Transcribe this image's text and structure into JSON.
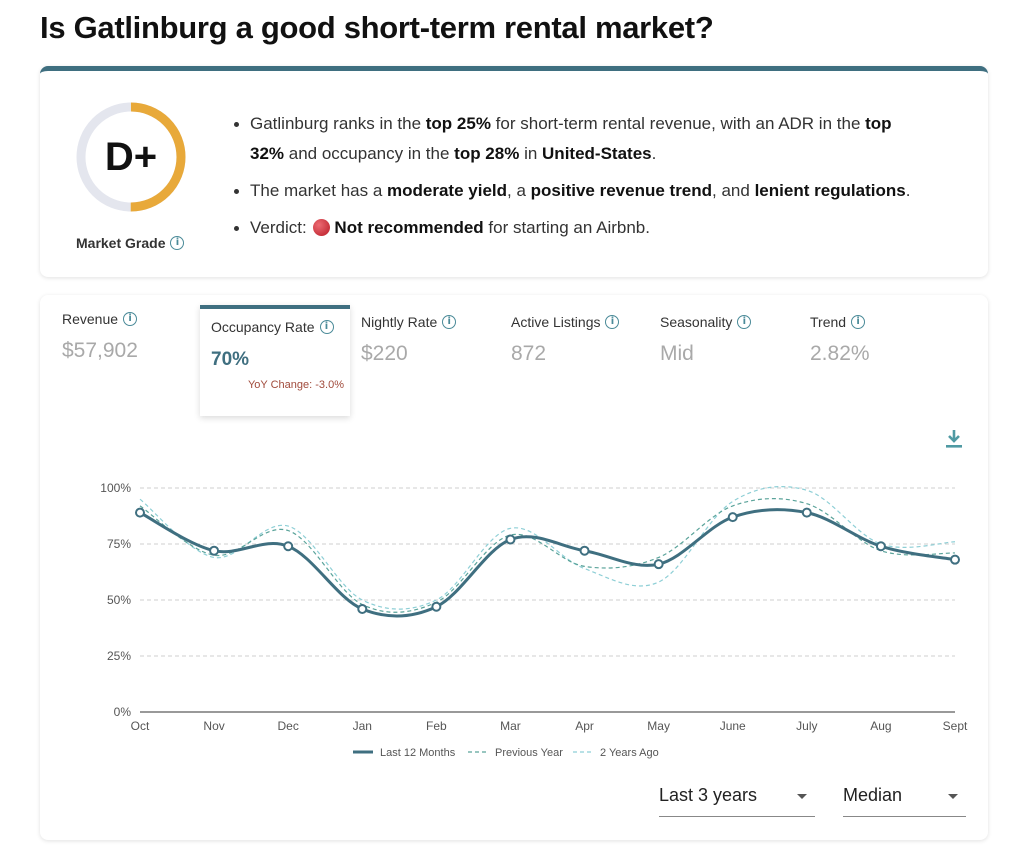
{
  "title": "Is Gatlinburg a good short-term rental market?",
  "grade": {
    "letter": "D+",
    "label": "Market Grade",
    "ring_color": "#e8a93a",
    "ring_track_color": "#e4e6ee",
    "ring_fraction": 0.5
  },
  "summary": {
    "b1_t1": "Gatlinburg ranks in the ",
    "b1_s1": "top 25%",
    "b1_t2": " for short-term rental revenue, with an ADR in the ",
    "b1_s2": "top 32%",
    "b1_t3": " and occupancy in the ",
    "b1_s3": "top 28%",
    "b1_t4": " in ",
    "b1_s4": "United-States",
    "b1_t5": ".",
    "b2_t1": "The market has a ",
    "b2_s1": "moderate yield",
    "b2_t2": ", a ",
    "b2_s2": "positive revenue trend",
    "b2_t3": ", and ",
    "b2_s3": "lenient regulations",
    "b2_t4": ".",
    "b3_t1": "Verdict: ",
    "b3_s1": "Not recommended",
    "b3_t2": " for starting an Airbnb."
  },
  "metrics": [
    {
      "label": "Revenue",
      "value": "$57,902"
    },
    {
      "label": "Occupancy Rate",
      "value": "70%",
      "yoy": "YoY Change: -3.0%"
    },
    {
      "label": "Nightly Rate",
      "value": "$220"
    },
    {
      "label": "Active Listings",
      "value": "872"
    },
    {
      "label": "Seasonality",
      "value": "Mid"
    },
    {
      "label": "Trend",
      "value": "2.82%"
    }
  ],
  "active_metric_index": 1,
  "colors": {
    "accent": "#3f6f80",
    "prev_year": "#5aa39a",
    "two_years": "#8ecfd6"
  },
  "chart_data": {
    "type": "line",
    "categories": [
      "Oct",
      "Nov",
      "Dec",
      "Jan",
      "Feb",
      "Mar",
      "Apr",
      "May",
      "June",
      "July",
      "Aug",
      "Sept"
    ],
    "y_ticks": [
      "0%",
      "25%",
      "50%",
      "75%",
      "100%"
    ],
    "ylim": [
      0,
      100
    ],
    "grid": true,
    "legend_position": "bottom",
    "series": [
      {
        "name": "Last 12 Months",
        "style": "solid",
        "values": [
          89,
          72,
          74,
          46,
          47,
          77,
          72,
          66,
          87,
          89,
          74,
          68
        ]
      },
      {
        "name": "Previous Year",
        "style": "dashed",
        "values": [
          92,
          70,
          81,
          48,
          49,
          79,
          65,
          69,
          92,
          93,
          72,
          71
        ]
      },
      {
        "name": "2 Years Ago",
        "style": "dashed",
        "values": [
          95,
          69,
          83,
          50,
          50,
          82,
          64,
          58,
          94,
          99,
          75,
          76
        ]
      }
    ]
  },
  "controls": {
    "period": "Last 3 years",
    "statistic": "Median"
  }
}
